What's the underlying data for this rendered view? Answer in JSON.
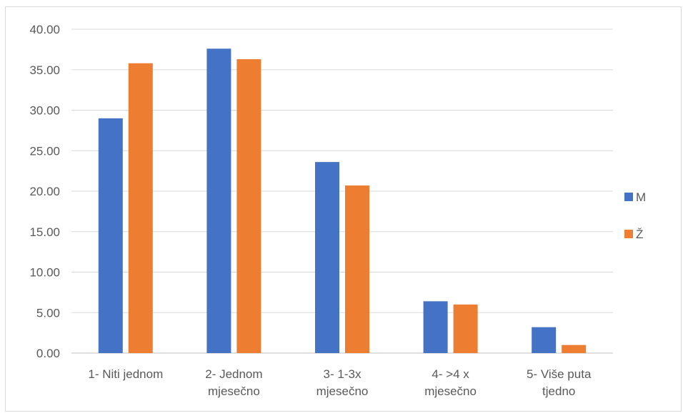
{
  "chart_data": {
    "type": "bar",
    "title": "",
    "xlabel": "",
    "ylabel": "",
    "categories": [
      [
        "1- Niti jednom"
      ],
      [
        "2- Jednom",
        "mjesečno"
      ],
      [
        "3- 1-3x",
        "mjesečno"
      ],
      [
        "4- >4 x",
        "mjesečno"
      ],
      [
        "5- Više puta",
        "tjedno"
      ]
    ],
    "series": [
      {
        "name": "M",
        "color": "#4472c4",
        "values": [
          29.0,
          37.6,
          23.6,
          6.4,
          3.2
        ]
      },
      {
        "name": "Ž",
        "color": "#ed7d31",
        "values": [
          35.8,
          36.3,
          20.7,
          6.0,
          1.0
        ]
      }
    ],
    "ylim": [
      0,
      40
    ],
    "yticks": [
      "0.00",
      "5.00",
      "10.00",
      "15.00",
      "20.00",
      "25.00",
      "30.00",
      "35.00",
      "40.00"
    ],
    "grid": true,
    "legend_position": "right"
  }
}
